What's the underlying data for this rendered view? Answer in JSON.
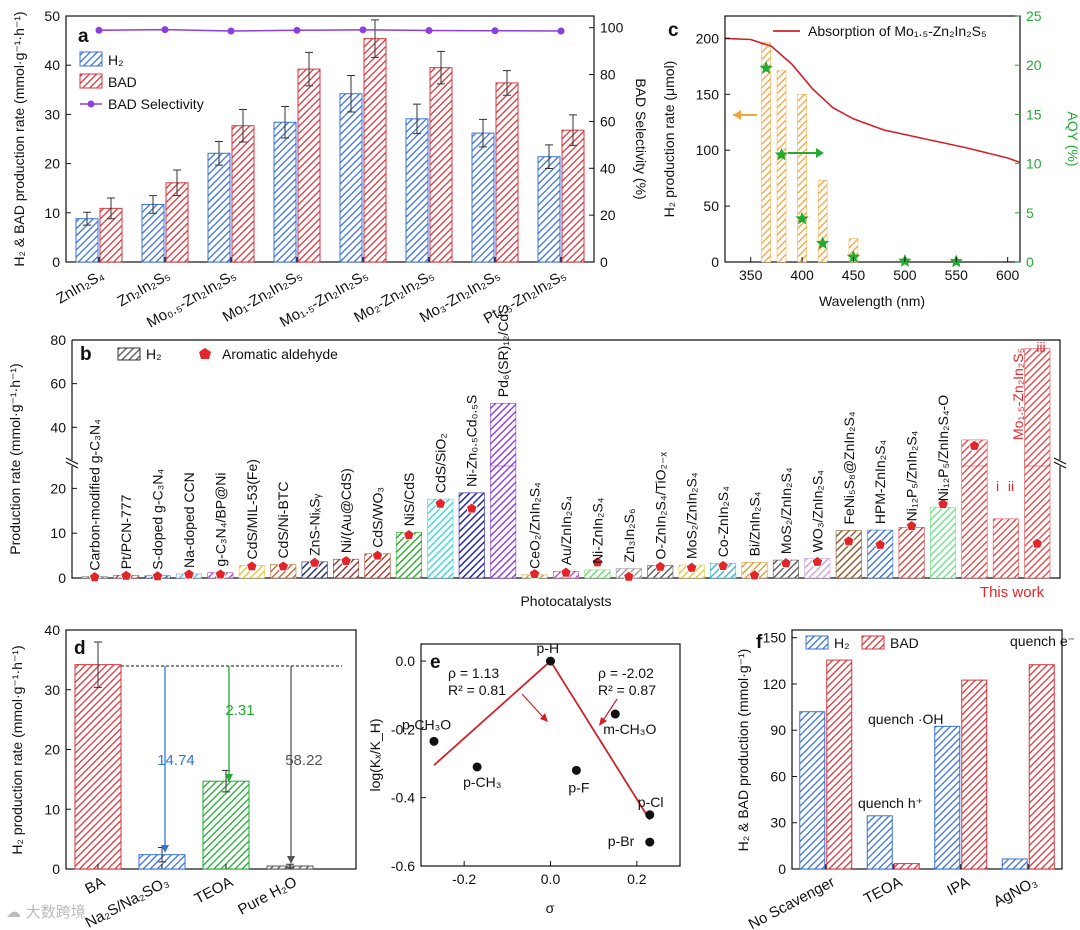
{
  "colors": {
    "h2": "#3a72d8",
    "bad": "#d6363c",
    "sel": "#8a3fe0",
    "aqy": "#17a21d",
    "orange": "#f3a33c",
    "abs": "#d0222a",
    "green": "#22aa33",
    "blue": "#2f78e0",
    "gray": "#555555"
  },
  "panels": {
    "a": "a",
    "b": "b",
    "c": "c",
    "d": "d",
    "e": "e",
    "f": "f"
  },
  "watermark": "大数跨境",
  "chart_data": [
    {
      "id": "a",
      "type": "bar",
      "ylabel": "H₂ & BAD production rate (mmol·g⁻¹·h⁻¹)",
      "y2label": "BAD Selectivity (%)",
      "ylim": [
        0,
        50
      ],
      "y2lim": [
        0,
        105
      ],
      "yticks": [
        "0",
        "10",
        "20",
        "30",
        "40",
        "50"
      ],
      "y2ticks": [
        "0",
        "20",
        "40",
        "60",
        "80",
        "100"
      ],
      "categories": [
        "ZnIn₂S₄",
        "Zn₂In₂S₅",
        "Mo₀.₅-Zn₂In₂S₅",
        "Mo₁-Zn₂In₂S₅",
        "Mo₁.₅-Zn₂In₂S₅",
        "Mo₂-Zn₂In₂S₅",
        "Mo₃-Zn₂In₂S₅",
        "Pt₁.₅-Zn₂In₂S₅"
      ],
      "series": [
        {
          "name": "H₂",
          "values": [
            8.8,
            11.7,
            22.1,
            28.4,
            34.2,
            29.1,
            26.2,
            21.4
          ],
          "errors": [
            1.3,
            1.8,
            2.4,
            3.2,
            3.7,
            3.0,
            2.8,
            2.4
          ]
        },
        {
          "name": "BAD",
          "values": [
            10.9,
            16.1,
            27.7,
            39.2,
            45.4,
            39.5,
            36.4,
            26.8
          ],
          "errors": [
            2.1,
            2.6,
            3.3,
            3.4,
            3.8,
            3.3,
            2.5,
            3.1
          ]
        },
        {
          "name": "BAD Selectivity",
          "values": [
            98.9,
            99.2,
            98.6,
            98.9,
            99.1,
            98.8,
            98.7,
            98.6
          ],
          "axis": "right"
        }
      ],
      "legend": [
        "H₂",
        "BAD",
        "BAD Selectivity"
      ]
    },
    {
      "id": "c",
      "type": "bar",
      "xlabel": "Wavelength (nm)",
      "ylabel": "H₂ production rate (μmol)",
      "y2label": "AQY (%)",
      "xlim": [
        325,
        612
      ],
      "ylim": [
        0,
        220
      ],
      "y2lim": [
        0,
        25
      ],
      "xticks": [
        "350",
        "400",
        "450",
        "500",
        "550",
        "600"
      ],
      "yticks": [
        "0",
        "50",
        "100",
        "150",
        "200"
      ],
      "y2ticks": [
        "0",
        "5",
        "10",
        "15",
        "20",
        "25"
      ],
      "bars_x": [
        365,
        380,
        400,
        420,
        450
      ],
      "bars_values": [
        196,
        171,
        150,
        73,
        21
      ],
      "aqy_x": [
        365,
        380,
        400,
        420,
        450,
        500,
        550
      ],
      "aqy_values": [
        19.7,
        10.9,
        4.4,
        1.9,
        0.5,
        0.1,
        0.05
      ],
      "absorption_label": "Absorption of Mo₁.₅-Zn₂In₂S₅",
      "absorption_curve": [
        [
          325,
          200
        ],
        [
          350,
          199
        ],
        [
          370,
          193
        ],
        [
          390,
          177
        ],
        [
          410,
          155
        ],
        [
          430,
          138
        ],
        [
          450,
          128
        ],
        [
          480,
          118
        ],
        [
          520,
          110
        ],
        [
          560,
          102
        ],
        [
          600,
          93
        ],
        [
          612,
          89
        ]
      ]
    },
    {
      "id": "b",
      "type": "bar",
      "xlabel": "Photocatalysts",
      "ylabel": "Production rate (mmol·g⁻¹·h⁻¹)",
      "ylim": [
        0,
        80
      ],
      "yticks_lower": [
        "0",
        "10",
        "20"
      ],
      "yticks_upper": [
        "40",
        "60",
        "80"
      ],
      "legend": [
        "H₂",
        "Aromatic aldehyde"
      ],
      "categories": [
        "Carbon-modified g-C₃N₄",
        "Pt/PCN-777",
        "S-doped g-C₃N₄",
        "Na-doped CCN",
        "g-C₃N₄/BP@Ni",
        "CdS/MIL-53(Fe)",
        "CdS/Ni-BTC",
        "ZnS-NiₓSᵧ",
        "Ni/(Au@CdS)",
        "CdS/WO₃",
        "NiS/CdS",
        "CdS/SiO₂",
        "Ni-Zn₀.₅Cd₀.₅S",
        "Pd₆(SR)₁₂/CdS",
        "CeO₂/ZnIn₂S₄",
        "Au/ZnIn₂S₄",
        "Ni-ZnIn₂S₄",
        "Zn₃In₂S₆",
        "O-ZnIn₂S₄/TiO₂₋ₓ",
        "MoS₂/ZnIn₂S₄",
        "Co-ZnIn₂S₄",
        "Bi/ZnIn₂S₄",
        "MoS₂/ZnIn₂S₄",
        "WO₃/ZnIn₂S₄",
        "FeNi₅S₈@ZnIn₂S₄",
        "HPM-ZnIn₂S₄",
        "Ni₁₂P₅/ZnIn₂S₄",
        "Ni₁₂P₅/ZnIn₂S₄-O",
        "Mo₁.₅-Zn₂In₂S₅ (i)",
        "Mo₁.₅-Zn₂In₂S₅ (ii)",
        "Mo₁.₅-Zn₂In₂S₅ (iii)"
      ],
      "values": [
        0.3,
        0.6,
        0.5,
        0.9,
        1.2,
        2.8,
        3.0,
        3.6,
        4.2,
        5.4,
        10.2,
        17.6,
        19.0,
        51.0,
        0.7,
        1.5,
        1.8,
        2.1,
        2.8,
        2.9,
        3.3,
        3.5,
        4.0,
        4.4,
        10.6,
        10.7,
        11.3,
        15.8,
        34.2,
        13.2,
        76.0
      ],
      "aldehyde": [
        0.2,
        0.5,
        0.4,
        0.8,
        0.8,
        2.6,
        2.6,
        3.4,
        3.8,
        5.0,
        9.6,
        16.6,
        15.5,
        null,
        0.9,
        1.2,
        3.5,
        0.3,
        2.5,
        2.3,
        2.7,
        0.6,
        3.3,
        3.6,
        8.2,
        7.4,
        11.6,
        16.5,
        31.5,
        null,
        7.7
      ],
      "bar_colors": [
        "#7a7a7a",
        "#c94a4a",
        "#3a56a0",
        "#6fb1e6",
        "#a84ad6",
        "#e6c43a",
        "#b86a3a",
        "#1a2a6e",
        "#8a3a3a",
        "#a83a2a",
        "#2aaa2a",
        "#3ad6d6",
        "#1a1aa6",
        "#8a3ae0",
        "#c9a43a",
        "#c94ab6",
        "#6fd66f",
        "#9a9a9a",
        "#5a5a5a",
        "#e6c43a",
        "#3ab6d6",
        "#d6a03a",
        "#5a5a5a",
        "#c9a0e0",
        "#8a5a2a",
        "#3a72d8",
        "#c94a4a",
        "#6fe08a",
        "#e04a4a",
        "#e04a4a",
        "#e04a4a"
      ],
      "labels": {
        "i": "i",
        "ii": "ii",
        "iii": "iii",
        "this_work": "This work",
        "mo_label": "Mo₁.₅-Zn₂In₂S₅"
      }
    },
    {
      "id": "d",
      "type": "bar",
      "ylabel": "H₂ production rate (mmol·g⁻¹·h⁻¹)",
      "ylim": [
        0,
        40
      ],
      "yticks": [
        "0",
        "10",
        "20",
        "30",
        "40"
      ],
      "categories": [
        "BA",
        "Na₂S/Na₂SO₃",
        "TEOA",
        "Pure H₂O"
      ],
      "values": [
        34.2,
        2.4,
        14.7,
        0.5
      ],
      "errors": [
        3.8,
        1.2,
        1.8,
        0.3
      ],
      "colors": [
        "#d6363c",
        "#3a72d8",
        "#22aa33",
        "#555555"
      ],
      "annotations": [
        "14.74",
        "2.31",
        "58.22"
      ]
    },
    {
      "id": "e",
      "type": "scatter",
      "xlabel": "σ",
      "ylabel": "log(Kₓ/K_H)",
      "xlim": [
        -0.3,
        0.3
      ],
      "ylim": [
        -0.6,
        0.05
      ],
      "xticks": [
        "-0.2",
        "0.0",
        "0.2"
      ],
      "yticks": [
        "-0.6",
        "-0.4",
        "-0.2",
        "0.0"
      ],
      "points": [
        {
          "label": "p-H",
          "x": 0.0,
          "y": 0.0
        },
        {
          "label": "p-CH₃O",
          "x": -0.27,
          "y": -0.235
        },
        {
          "label": "p-CH₃",
          "x": -0.17,
          "y": -0.31
        },
        {
          "label": "p-F",
          "x": 0.06,
          "y": -0.32
        },
        {
          "label": "m-CH₃O",
          "x": 0.15,
          "y": -0.155
        },
        {
          "label": "p-Cl",
          "x": 0.23,
          "y": -0.45
        },
        {
          "label": "p-Br",
          "x": 0.23,
          "y": -0.53
        }
      ],
      "fit_left": {
        "rho": "ρ = 1.13",
        "r2": "R² = 0.81",
        "line": [
          [
            -0.27,
            -0.305
          ],
          [
            0.0,
            0.0
          ]
        ]
      },
      "fit_right": {
        "rho": "ρ = -2.02",
        "r2": "R² = 0.87",
        "line": [
          [
            0.0,
            0.0
          ],
          [
            0.23,
            -0.465
          ]
        ]
      }
    },
    {
      "id": "f",
      "type": "bar",
      "ylabel": "H₂ & BAD production (mmol·g⁻¹)",
      "ylim": [
        0,
        155
      ],
      "yticks": [
        "0",
        "30",
        "60",
        "90",
        "120",
        "150"
      ],
      "categories": [
        "No Scavenger",
        "TEOA",
        "IPA",
        "AgNO₃"
      ],
      "series": [
        {
          "name": "H₂",
          "values": [
            102,
            34.5,
            92.5,
            6.5
          ]
        },
        {
          "name": "BAD",
          "values": [
            135.5,
            3.5,
            122.5,
            132.5
          ]
        }
      ],
      "legend": [
        "H₂",
        "BAD"
      ],
      "annotations": [
        "quench h⁺",
        "quench ·OH",
        "quench e⁻"
      ]
    }
  ]
}
